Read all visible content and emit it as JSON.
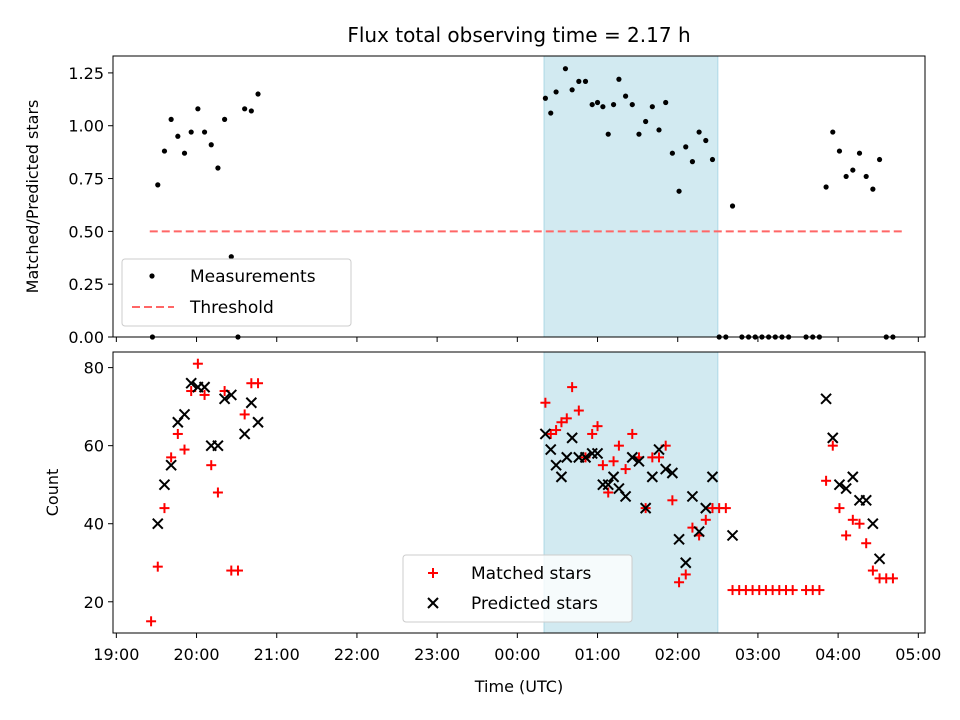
{
  "chart_data": [
    {
      "type": "scatter",
      "title": "Flux total observing time = 2.17 h",
      "xlabel": "",
      "ylabel": "Matched/Predicted stars",
      "ylim": [
        0,
        1.33
      ],
      "yticks": [
        "0.00",
        "0.25",
        "0.50",
        "0.75",
        "1.00",
        "1.25"
      ],
      "shaded_region": [
        "00:20",
        "02:30"
      ],
      "threshold": {
        "y": 0.5,
        "x_range": [
          "19:25",
          "04:50"
        ],
        "color": "#ff6666"
      },
      "legend_position": "lower left",
      "series": [
        {
          "name": "Measurements",
          "marker": "dot",
          "color": "#000000",
          "points": [
            [
              "19:27",
              0.0
            ],
            [
              "19:31",
              0.72
            ],
            [
              "19:36",
              0.88
            ],
            [
              "19:41",
              1.03
            ],
            [
              "19:46",
              0.95
            ],
            [
              "19:51",
              0.87
            ],
            [
              "19:56",
              0.97
            ],
            [
              "20:01",
              1.08
            ],
            [
              "20:06",
              0.97
            ],
            [
              "20:11",
              0.91
            ],
            [
              "20:16",
              0.8
            ],
            [
              "20:21",
              1.03
            ],
            [
              "20:26",
              0.38
            ],
            [
              "20:31",
              0.0
            ],
            [
              "20:36",
              1.08
            ],
            [
              "20:41",
              1.07
            ],
            [
              "20:46",
              1.15
            ],
            [
              "00:21",
              1.13
            ],
            [
              "00:25",
              1.06
            ],
            [
              "00:29",
              1.16
            ],
            [
              "00:36",
              1.27
            ],
            [
              "00:41",
              1.17
            ],
            [
              "00:46",
              1.21
            ],
            [
              "00:51",
              1.21
            ],
            [
              "00:56",
              1.1
            ],
            [
              "01:00",
              1.11
            ],
            [
              "01:04",
              1.09
            ],
            [
              "01:08",
              0.96
            ],
            [
              "01:12",
              1.1
            ],
            [
              "01:16",
              1.22
            ],
            [
              "01:21",
              1.14
            ],
            [
              "01:26",
              1.1
            ],
            [
              "01:31",
              0.96
            ],
            [
              "01:36",
              1.02
            ],
            [
              "01:41",
              1.09
            ],
            [
              "01:46",
              0.98
            ],
            [
              "01:51",
              1.11
            ],
            [
              "01:56",
              0.87
            ],
            [
              "02:01",
              0.69
            ],
            [
              "02:06",
              0.9
            ],
            [
              "02:11",
              0.83
            ],
            [
              "02:16",
              0.97
            ],
            [
              "02:21",
              0.93
            ],
            [
              "02:26",
              0.84
            ],
            [
              "02:31",
              0.0
            ],
            [
              "02:36",
              0.0
            ],
            [
              "02:41",
              0.62
            ],
            [
              "02:48",
              0.0
            ],
            [
              "02:53",
              0.0
            ],
            [
              "02:58",
              0.0
            ],
            [
              "03:03",
              0.0
            ],
            [
              "03:08",
              0.0
            ],
            [
              "03:13",
              0.0
            ],
            [
              "03:18",
              0.0
            ],
            [
              "03:23",
              0.0
            ],
            [
              "03:36",
              0.0
            ],
            [
              "03:41",
              0.0
            ],
            [
              "03:46",
              0.0
            ],
            [
              "03:51",
              0.71
            ],
            [
              "03:56",
              0.97
            ],
            [
              "04:01",
              0.88
            ],
            [
              "04:06",
              0.76
            ],
            [
              "04:11",
              0.79
            ],
            [
              "04:16",
              0.87
            ],
            [
              "04:21",
              0.76
            ],
            [
              "04:26",
              0.7
            ],
            [
              "04:31",
              0.84
            ],
            [
              "04:36",
              0.0
            ],
            [
              "04:41",
              0.0
            ]
          ]
        },
        {
          "name": "Threshold",
          "marker": "dashed-line",
          "color": "#ff6666"
        }
      ]
    },
    {
      "type": "scatter",
      "title": "",
      "xlabel": "Time (UTC)",
      "ylabel": "Count",
      "ylim": [
        12,
        84
      ],
      "yticks": [
        "20",
        "40",
        "60",
        "80"
      ],
      "xticks": [
        "19:00",
        "20:00",
        "21:00",
        "22:00",
        "23:00",
        "00:00",
        "01:00",
        "02:00",
        "03:00",
        "04:00",
        "05:00"
      ],
      "shaded_region": [
        "00:20",
        "02:30"
      ],
      "legend_position": "lower center",
      "series": [
        {
          "name": "Matched stars",
          "marker": "plus",
          "color": "#ff0000",
          "points": [
            [
              "19:26",
              15
            ],
            [
              "19:31",
              29
            ],
            [
              "19:36",
              44
            ],
            [
              "19:41",
              57
            ],
            [
              "19:46",
              63
            ],
            [
              "19:51",
              59
            ],
            [
              "19:56",
              74
            ],
            [
              "20:01",
              81
            ],
            [
              "20:06",
              73
            ],
            [
              "20:11",
              55
            ],
            [
              "20:16",
              48
            ],
            [
              "20:21",
              74
            ],
            [
              "20:26",
              28
            ],
            [
              "20:31",
              28
            ],
            [
              "20:36",
              68
            ],
            [
              "20:41",
              76
            ],
            [
              "20:46",
              76
            ],
            [
              "00:21",
              71
            ],
            [
              "00:25",
              63
            ],
            [
              "00:29",
              64
            ],
            [
              "00:33",
              66
            ],
            [
              "00:37",
              67
            ],
            [
              "00:41",
              75
            ],
            [
              "00:46",
              69
            ],
            [
              "00:51",
              57
            ],
            [
              "00:56",
              63
            ],
            [
              "01:00",
              65
            ],
            [
              "01:04",
              55
            ],
            [
              "01:08",
              48
            ],
            [
              "01:12",
              56
            ],
            [
              "01:16",
              60
            ],
            [
              "01:21",
              54
            ],
            [
              "01:26",
              63
            ],
            [
              "01:31",
              57
            ],
            [
              "01:36",
              44
            ],
            [
              "01:41",
              57
            ],
            [
              "01:46",
              57
            ],
            [
              "01:51",
              60
            ],
            [
              "01:56",
              46
            ],
            [
              "02:01",
              25
            ],
            [
              "02:06",
              27
            ],
            [
              "02:11",
              39
            ],
            [
              "02:16",
              37
            ],
            [
              "02:21",
              41
            ],
            [
              "02:26",
              44
            ],
            [
              "02:31",
              44
            ],
            [
              "02:36",
              44
            ],
            [
              "02:41",
              23
            ],
            [
              "02:46",
              23
            ],
            [
              "02:51",
              23
            ],
            [
              "02:56",
              23
            ],
            [
              "03:01",
              23
            ],
            [
              "03:06",
              23
            ],
            [
              "03:11",
              23
            ],
            [
              "03:16",
              23
            ],
            [
              "03:21",
              23
            ],
            [
              "03:26",
              23
            ],
            [
              "03:36",
              23
            ],
            [
              "03:41",
              23
            ],
            [
              "03:46",
              23
            ],
            [
              "03:51",
              51
            ],
            [
              "03:56",
              60
            ],
            [
              "04:01",
              44
            ],
            [
              "04:06",
              37
            ],
            [
              "04:11",
              41
            ],
            [
              "04:16",
              40
            ],
            [
              "04:21",
              35
            ],
            [
              "04:26",
              28
            ],
            [
              "04:31",
              26
            ],
            [
              "04:36",
              26
            ],
            [
              "04:41",
              26
            ]
          ]
        },
        {
          "name": "Predicted stars",
          "marker": "x",
          "color": "#000000",
          "points": [
            [
              "19:31",
              40
            ],
            [
              "19:36",
              50
            ],
            [
              "19:41",
              55
            ],
            [
              "19:46",
              66
            ],
            [
              "19:51",
              68
            ],
            [
              "19:56",
              76
            ],
            [
              "20:01",
              75
            ],
            [
              "20:06",
              75
            ],
            [
              "20:11",
              60
            ],
            [
              "20:16",
              60
            ],
            [
              "20:21",
              72
            ],
            [
              "20:26",
              73
            ],
            [
              "20:36",
              63
            ],
            [
              "20:41",
              71
            ],
            [
              "20:46",
              66
            ],
            [
              "00:21",
              63
            ],
            [
              "00:25",
              59
            ],
            [
              "00:29",
              55
            ],
            [
              "00:33",
              52
            ],
            [
              "00:37",
              57
            ],
            [
              "00:41",
              62
            ],
            [
              "00:46",
              57
            ],
            [
              "00:51",
              57
            ],
            [
              "00:56",
              58
            ],
            [
              "01:00",
              58
            ],
            [
              "01:04",
              50
            ],
            [
              "01:08",
              50
            ],
            [
              "01:12",
              52
            ],
            [
              "01:16",
              49
            ],
            [
              "01:21",
              47
            ],
            [
              "01:26",
              57
            ],
            [
              "01:31",
              56
            ],
            [
              "01:36",
              44
            ],
            [
              "01:41",
              52
            ],
            [
              "01:46",
              59
            ],
            [
              "01:51",
              54
            ],
            [
              "01:56",
              53
            ],
            [
              "02:01",
              36
            ],
            [
              "02:06",
              30
            ],
            [
              "02:11",
              47
            ],
            [
              "02:16",
              38
            ],
            [
              "02:21",
              44
            ],
            [
              "02:26",
              52
            ],
            [
              "02:41",
              37
            ],
            [
              "03:51",
              72
            ],
            [
              "03:56",
              62
            ],
            [
              "04:01",
              50
            ],
            [
              "04:06",
              49
            ],
            [
              "04:11",
              52
            ],
            [
              "04:16",
              46
            ],
            [
              "04:21",
              46
            ],
            [
              "04:26",
              40
            ],
            [
              "04:31",
              31
            ]
          ]
        }
      ]
    }
  ],
  "colors": {
    "shade": "#add8e6",
    "matched": "#ff0000",
    "predicted": "#000000",
    "threshold": "#ff6666"
  }
}
